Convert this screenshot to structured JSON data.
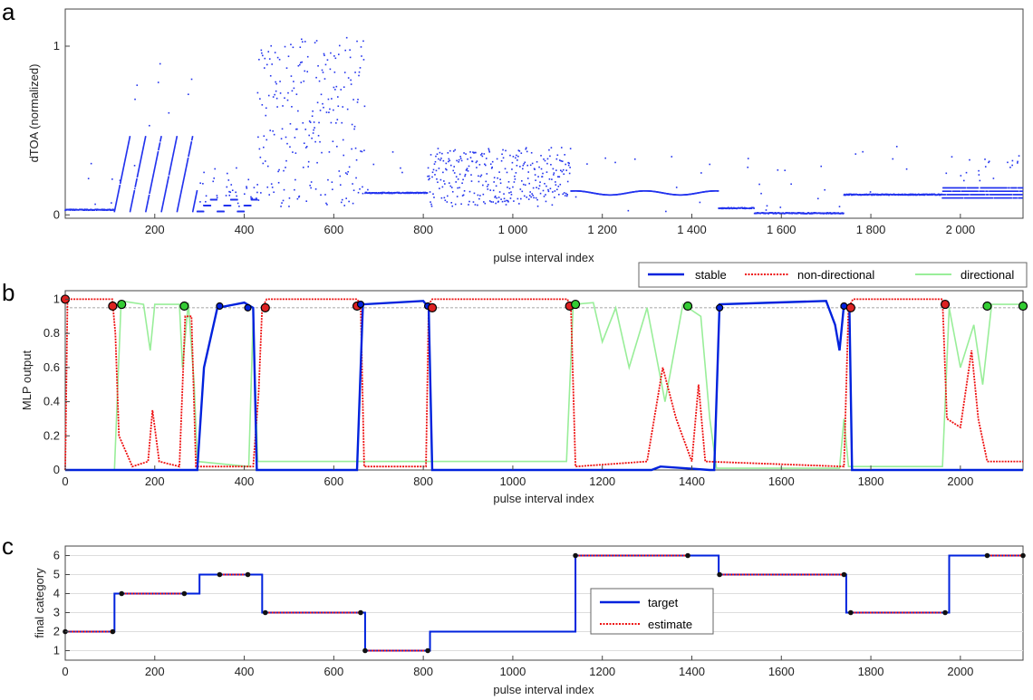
{
  "colors": {
    "stable": "#0022dd",
    "non_directional": "#ee1111",
    "directional": "#99ee99",
    "marker_red": "#dd2222",
    "marker_green": "#33cc33",
    "dots": "#2233ee",
    "estimate": "#ee1111",
    "target": "#0022dd"
  },
  "chart_data": [
    {
      "panel": "a",
      "type": "scatter",
      "title": "",
      "xlabel": "pulse interval index",
      "ylabel": "dTOA (normalized)",
      "xlim": [
        0,
        2140
      ],
      "ylim": [
        -0.02,
        1.22
      ],
      "xticks": [
        200,
        400,
        600,
        800,
        1000,
        1200,
        1400,
        1600,
        1800,
        2000
      ],
      "xtick_labels": [
        "200",
        "400",
        "600",
        "800",
        "1 000",
        "1 200",
        "1 400",
        "1 600",
        "1 800",
        "2 000"
      ],
      "yticks": [
        0,
        1
      ],
      "ytick_labels": [
        "0",
        "1"
      ],
      "segments": [
        {
          "x0": 0,
          "x1": 110,
          "kind": "flat",
          "level": 0.03
        },
        {
          "x0": 110,
          "x1": 295,
          "kind": "ramps",
          "level": 0.02,
          "level2": 0.47
        },
        {
          "x0": 295,
          "x1": 430,
          "kind": "steps",
          "level": 0.02,
          "level2": 0.1
        },
        {
          "x0": 430,
          "x1": 670,
          "kind": "scatter",
          "level": 0.05,
          "level2": 1.05
        },
        {
          "x0": 670,
          "x1": 810,
          "kind": "flat",
          "level": 0.13
        },
        {
          "x0": 810,
          "x1": 1130,
          "kind": "scatter",
          "level": 0.05,
          "level2": 0.4
        },
        {
          "x0": 1130,
          "x1": 1460,
          "kind": "wave",
          "level": 0.13
        },
        {
          "x0": 1460,
          "x1": 1540,
          "kind": "flat",
          "level": 0.04
        },
        {
          "x0": 1540,
          "x1": 1740,
          "kind": "flat",
          "level": 0.01
        },
        {
          "x0": 1740,
          "x1": 1960,
          "kind": "flat",
          "level": 0.12
        },
        {
          "x0": 1960,
          "x1": 2140,
          "kind": "band",
          "level": 0.1,
          "level2": 0.16
        }
      ]
    },
    {
      "panel": "b",
      "type": "line",
      "title": "",
      "xlabel": "pulse interval index",
      "ylabel": "MLP output",
      "xlim": [
        0,
        2140
      ],
      "ylim": [
        0,
        1.05
      ],
      "xticks": [
        0,
        200,
        400,
        600,
        800,
        1000,
        1200,
        1400,
        1600,
        1800,
        2000
      ],
      "xtick_labels": [
        "0",
        "200",
        "400",
        "600",
        "800",
        "1000",
        "1200",
        "1400",
        "1600",
        "1800",
        "2000"
      ],
      "yticks": [
        0,
        0.2,
        0.4,
        0.6,
        0.8,
        1
      ],
      "ytick_labels": [
        "0",
        "0.2",
        "0.4",
        "0.6",
        "0.8",
        "1"
      ],
      "threshold": 0.95,
      "legend": [
        "stable",
        "non-directional",
        "directional"
      ],
      "series": [
        {
          "name": "stable",
          "points": [
            [
              0,
              0
            ],
            [
              295,
              0
            ],
            [
              310,
              0.6
            ],
            [
              340,
              0.95
            ],
            [
              400,
              0.98
            ],
            [
              420,
              0.95
            ],
            [
              428,
              0
            ],
            [
              652,
              0
            ],
            [
              665,
              0.97
            ],
            [
              800,
              0.99
            ],
            [
              812,
              0.95
            ],
            [
              820,
              0
            ],
            [
              1310,
              0
            ],
            [
              1330,
              0.02
            ],
            [
              1440,
              0
            ],
            [
              1450,
              0
            ],
            [
              1462,
              0.97
            ],
            [
              1700,
              0.99
            ],
            [
              1720,
              0.85
            ],
            [
              1730,
              0.7
            ],
            [
              1740,
              0.97
            ],
            [
              1752,
              0.95
            ],
            [
              1758,
              0
            ],
            [
              2140,
              0
            ]
          ]
        },
        {
          "name": "non-directional",
          "points": [
            [
              0,
              0
            ],
            [
              5,
              1
            ],
            [
              105,
              1
            ],
            [
              112,
              0.8
            ],
            [
              120,
              0.2
            ],
            [
              150,
              0.02
            ],
            [
              185,
              0.05
            ],
            [
              195,
              0.35
            ],
            [
              210,
              0.05
            ],
            [
              255,
              0.02
            ],
            [
              268,
              0.9
            ],
            [
              282,
              0.9
            ],
            [
              292,
              0.02
            ],
            [
              420,
              0.02
            ],
            [
              432,
              0.45
            ],
            [
              440,
              0.95
            ],
            [
              450,
              1
            ],
            [
              652,
              1
            ],
            [
              660,
              0.97
            ],
            [
              668,
              0.02
            ],
            [
              806,
              0.02
            ],
            [
              812,
              0.97
            ],
            [
              820,
              1
            ],
            [
              1122,
              1
            ],
            [
              1130,
              0.95
            ],
            [
              1140,
              0.02
            ],
            [
              1300,
              0.05
            ],
            [
              1335,
              0.6
            ],
            [
              1365,
              0.3
            ],
            [
              1400,
              0.05
            ],
            [
              1415,
              0.5
            ],
            [
              1430,
              0.05
            ],
            [
              1740,
              0.02
            ],
            [
              1750,
              0.95
            ],
            [
              1760,
              1
            ],
            [
              1960,
              1
            ],
            [
              1970,
              0.3
            ],
            [
              2000,
              0.25
            ],
            [
              2025,
              0.7
            ],
            [
              2040,
              0.3
            ],
            [
              2060,
              0.05
            ],
            [
              2140,
              0.05
            ]
          ]
        },
        {
          "name": "directional",
          "points": [
            [
              0,
              0
            ],
            [
              110,
              0
            ],
            [
              125,
              0.99
            ],
            [
              175,
              0.97
            ],
            [
              190,
              0.7
            ],
            [
              200,
              0.97
            ],
            [
              255,
              0.97
            ],
            [
              262,
              0.6
            ],
            [
              275,
              0.98
            ],
            [
              288,
              0.5
            ],
            [
              295,
              0.05
            ],
            [
              410,
              0.02
            ],
            [
              420,
              0.9
            ],
            [
              430,
              0.05
            ],
            [
              1120,
              0.05
            ],
            [
              1135,
              0.97
            ],
            [
              1180,
              0.98
            ],
            [
              1200,
              0.75
            ],
            [
              1230,
              0.95
            ],
            [
              1260,
              0.6
            ],
            [
              1300,
              0.95
            ],
            [
              1340,
              0.4
            ],
            [
              1380,
              0.97
            ],
            [
              1420,
              0.9
            ],
            [
              1440,
              0.3
            ],
            [
              1455,
              0.01
            ],
            [
              1730,
              0.01
            ],
            [
              1740,
              0.3
            ],
            [
              1750,
              0.02
            ],
            [
              1960,
              0.02
            ],
            [
              1975,
              0.95
            ],
            [
              2000,
              0.6
            ],
            [
              2030,
              0.85
            ],
            [
              2050,
              0.5
            ],
            [
              2070,
              0.97
            ],
            [
              2140,
              0.97
            ]
          ]
        }
      ],
      "markers": [
        {
          "x": 0,
          "y": 1,
          "color": "red"
        },
        {
          "x": 106,
          "y": 0.96,
          "color": "red"
        },
        {
          "x": 126,
          "y": 0.97,
          "color": "green"
        },
        {
          "x": 266,
          "y": 0.96,
          "color": "green"
        },
        {
          "x": 345,
          "y": 0.96,
          "color": "blue"
        },
        {
          "x": 408,
          "y": 0.95,
          "color": "blue"
        },
        {
          "x": 447,
          "y": 0.95,
          "color": "red"
        },
        {
          "x": 652,
          "y": 0.96,
          "color": "red"
        },
        {
          "x": 660,
          "y": 0.97,
          "color": "blue"
        },
        {
          "x": 810,
          "y": 0.96,
          "color": "blue"
        },
        {
          "x": 820,
          "y": 0.95,
          "color": "red"
        },
        {
          "x": 1127,
          "y": 0.96,
          "color": "red"
        },
        {
          "x": 1140,
          "y": 0.97,
          "color": "green"
        },
        {
          "x": 1391,
          "y": 0.96,
          "color": "green"
        },
        {
          "x": 1462,
          "y": 0.95,
          "color": "blue"
        },
        {
          "x": 1740,
          "y": 0.96,
          "color": "blue"
        },
        {
          "x": 1755,
          "y": 0.95,
          "color": "red"
        },
        {
          "x": 1966,
          "y": 0.97,
          "color": "red"
        },
        {
          "x": 2060,
          "y": 0.96,
          "color": "green"
        },
        {
          "x": 2140,
          "y": 0.96,
          "color": "green"
        }
      ]
    },
    {
      "panel": "c",
      "type": "line",
      "title": "",
      "xlabel": "pulse interval index",
      "ylabel": "final category",
      "xlim": [
        0,
        2140
      ],
      "ylim": [
        0.5,
        6.5
      ],
      "xticks": [
        0,
        200,
        400,
        600,
        800,
        1000,
        1200,
        1400,
        1600,
        1800,
        2000
      ],
      "xtick_labels": [
        "0",
        "200",
        "400",
        "600",
        "800",
        "1000",
        "1200",
        "1400",
        "1600",
        "1800",
        "2000"
      ],
      "yticks": [
        1,
        2,
        3,
        4,
        5,
        6
      ],
      "ytick_labels": [
        "1",
        "2",
        "3",
        "4",
        "5",
        "6"
      ],
      "legend": [
        "target",
        "estimate"
      ],
      "series": [
        {
          "name": "target",
          "steps": [
            [
              0,
              2
            ],
            [
              110,
              4
            ],
            [
              300,
              5
            ],
            [
              440,
              3
            ],
            [
              670,
              1
            ],
            [
              815,
              2
            ],
            [
              1140,
              6
            ],
            [
              1460,
              5
            ],
            [
              1745,
              3
            ],
            [
              1975,
              6
            ],
            [
              2140,
              6
            ]
          ]
        },
        {
          "name": "estimate",
          "segments": [
            [
              0,
              106,
              2
            ],
            [
              126,
              266,
              4
            ],
            [
              345,
              408,
              5
            ],
            [
              447,
              660,
              3
            ],
            [
              670,
              810,
              1
            ],
            [
              1140,
              1391,
              6
            ],
            [
              1462,
              1740,
              5
            ],
            [
              1755,
              1966,
              3
            ],
            [
              2060,
              2140,
              6
            ]
          ]
        }
      ],
      "markers": [
        [
          0,
          2
        ],
        [
          106,
          2
        ],
        [
          126,
          4
        ],
        [
          266,
          4
        ],
        [
          345,
          5
        ],
        [
          408,
          5
        ],
        [
          447,
          3
        ],
        [
          660,
          3
        ],
        [
          670,
          1
        ],
        [
          810,
          1
        ],
        [
          1140,
          6
        ],
        [
          1391,
          6
        ],
        [
          1462,
          5
        ],
        [
          1740,
          5
        ],
        [
          1755,
          3
        ],
        [
          1966,
          3
        ],
        [
          2060,
          6
        ],
        [
          2140,
          6
        ]
      ]
    }
  ],
  "panel_labels": [
    "a",
    "b",
    "c"
  ],
  "legend_b": {
    "stable": "stable",
    "non_directional": "non-directional",
    "directional": "directional"
  },
  "legend_c": {
    "target": "target",
    "estimate": "estimate"
  }
}
